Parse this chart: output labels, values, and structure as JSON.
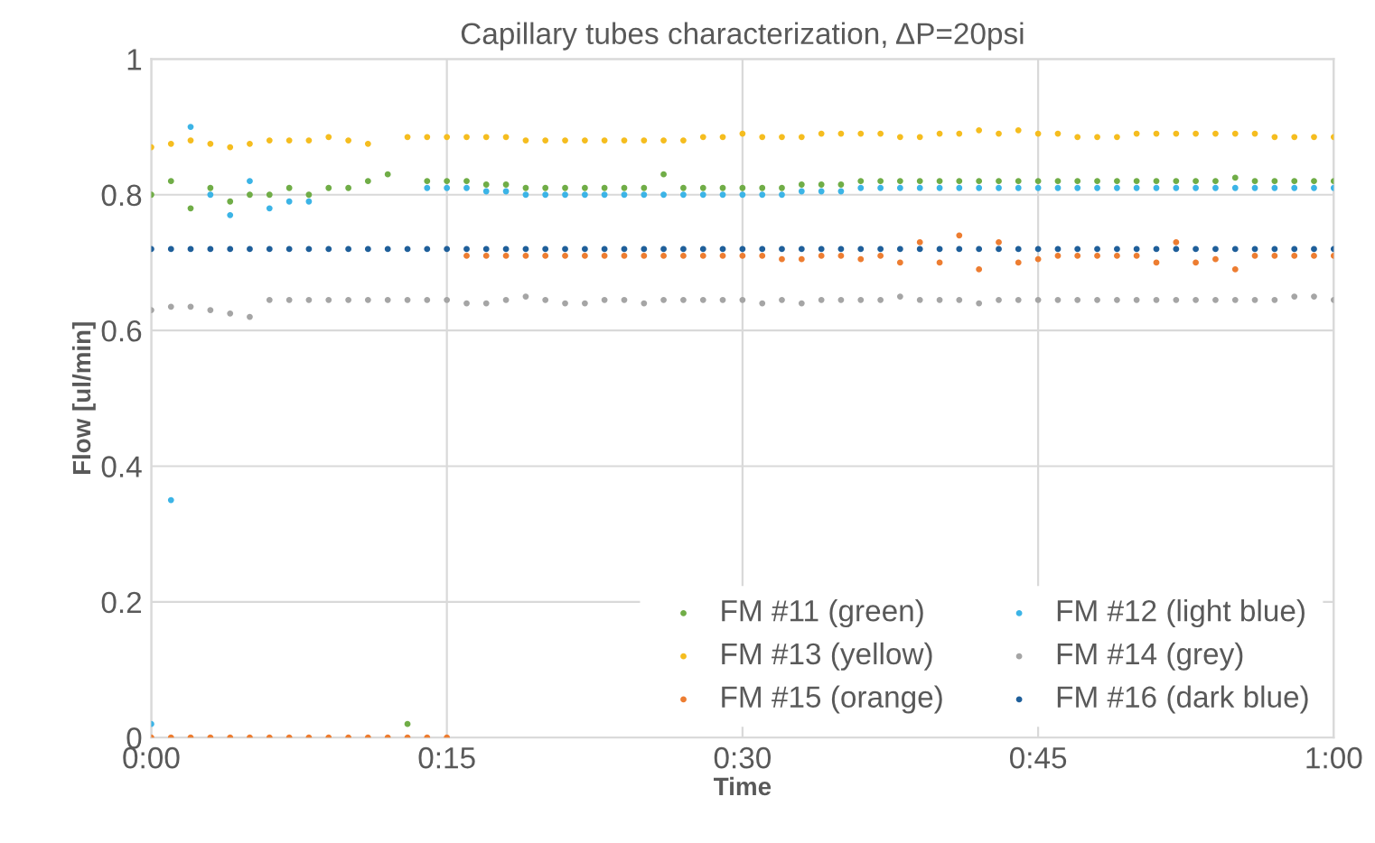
{
  "chart_data": {
    "type": "scatter",
    "title": "Capillary tubes characterization, ΔP=20psi",
    "xlabel": "Time",
    "ylabel": "Flow [ul/min]",
    "x": [
      0,
      0.0167,
      0.0333,
      0.05,
      0.0667,
      0.0833,
      0.1,
      0.1167,
      0.1333,
      0.15,
      0.1667,
      0.1833,
      0.2,
      0.2167,
      0.2333,
      0.25,
      0.2667,
      0.2833,
      0.3,
      0.3167,
      0.3333,
      0.35,
      0.3667,
      0.3833,
      0.4,
      0.4167,
      0.4333,
      0.45,
      0.4667,
      0.4833,
      0.5,
      0.5167,
      0.5333,
      0.55,
      0.5667,
      0.5833,
      0.6,
      0.6167,
      0.6333,
      0.65,
      0.6667,
      0.6833,
      0.7,
      0.7167,
      0.7333,
      0.75,
      0.7667,
      0.7833,
      0.8,
      0.8167,
      0.8333,
      0.85,
      0.8667,
      0.8833,
      0.9,
      0.9167,
      0.9333,
      0.95,
      0.9667,
      0.9833,
      1
    ],
    "xlim": [
      0,
      1
    ],
    "xticks": [
      {
        "value": 0,
        "label": "0:00"
      },
      {
        "value": 0.25,
        "label": "0:15"
      },
      {
        "value": 0.5,
        "label": "0:30"
      },
      {
        "value": 0.75,
        "label": "0:45"
      },
      {
        "value": 1,
        "label": "1:00"
      }
    ],
    "ylim": [
      0,
      1
    ],
    "yticks": [
      0,
      {
        "value": 0.2,
        "label": "0.2"
      },
      {
        "value": 0.4,
        "label": "0.4"
      },
      {
        "value": 0.6,
        "label": "0.6"
      },
      {
        "value": 0.8,
        "label": "0.8"
      },
      1
    ],
    "grid": true,
    "legend": "bottom right",
    "marker": "circle",
    "series": [
      {
        "name": "FM #11 (green)",
        "color": "#70ad47",
        "values": [
          0.8,
          0.82,
          0.78,
          0.81,
          0.79,
          0.8,
          0.8,
          0.81,
          0.8,
          0.81,
          0.81,
          0.82,
          0.83,
          0.02,
          0.82,
          0.82,
          0.82,
          0.815,
          0.815,
          0.81,
          0.81,
          0.81,
          0.81,
          0.81,
          0.81,
          0.81,
          0.83,
          0.81,
          0.81,
          0.81,
          0.81,
          0.81,
          0.81,
          0.815,
          0.815,
          0.815,
          0.82,
          0.82,
          0.82,
          0.82,
          0.82,
          0.82,
          0.82,
          0.82,
          0.82,
          0.82,
          0.82,
          0.82,
          0.82,
          0.82,
          0.82,
          0.82,
          0.82,
          0.82,
          0.82,
          0.825,
          0.82,
          0.82,
          0.82,
          0.82,
          0.82
        ]
      },
      {
        "name": "FM #12 (light blue)",
        "color": "#3cb4e6",
        "values": [
          0.02,
          0.35,
          0.9,
          0.8,
          0.77,
          0.82,
          0.78,
          0.79,
          0.79,
          null,
          null,
          null,
          null,
          null,
          0.81,
          0.81,
          0.81,
          0.805,
          0.805,
          0.8,
          0.8,
          0.8,
          0.8,
          0.8,
          0.8,
          0.8,
          0.8,
          0.8,
          0.8,
          0.8,
          0.8,
          0.8,
          0.8,
          0.805,
          0.805,
          0.805,
          0.81,
          0.81,
          0.81,
          0.81,
          0.81,
          0.81,
          0.81,
          0.81,
          0.81,
          0.81,
          0.81,
          0.81,
          0.81,
          0.81,
          0.81,
          0.81,
          0.81,
          0.81,
          0.81,
          0.81,
          0.81,
          0.81,
          0.81,
          0.81,
          0.81
        ]
      },
      {
        "name": "FM #13 (yellow)",
        "color": "#f5bd1f",
        "values": [
          0.87,
          0.875,
          0.88,
          0.875,
          0.87,
          0.875,
          0.88,
          0.88,
          0.88,
          0.885,
          0.88,
          0.875,
          null,
          0.885,
          0.885,
          0.885,
          0.885,
          0.885,
          0.885,
          0.88,
          0.88,
          0.88,
          0.88,
          0.88,
          0.88,
          0.88,
          0.88,
          0.88,
          0.885,
          0.885,
          0.89,
          0.885,
          0.885,
          0.885,
          0.89,
          0.89,
          0.89,
          0.89,
          0.885,
          0.885,
          0.89,
          0.89,
          0.895,
          0.89,
          0.895,
          0.89,
          0.89,
          0.885,
          0.885,
          0.885,
          0.89,
          0.89,
          0.89,
          0.89,
          0.89,
          0.89,
          0.89,
          0.885,
          0.885,
          0.885,
          0.885
        ]
      },
      {
        "name": "FM #14 (grey)",
        "color": "#a5a5a5",
        "values": [
          0.63,
          0.635,
          0.635,
          0.63,
          0.625,
          0.62,
          0.645,
          0.645,
          0.645,
          0.645,
          0.645,
          0.645,
          0.645,
          0.645,
          0.645,
          0.645,
          0.64,
          0.64,
          0.645,
          0.65,
          0.645,
          0.64,
          0.64,
          0.645,
          0.645,
          0.64,
          0.645,
          0.645,
          0.645,
          0.645,
          0.645,
          0.64,
          0.645,
          0.64,
          0.645,
          0.645,
          0.645,
          0.645,
          0.65,
          0.645,
          0.645,
          0.645,
          0.64,
          0.645,
          0.645,
          0.645,
          0.645,
          0.645,
          0.645,
          0.645,
          0.645,
          0.645,
          0.645,
          0.645,
          0.645,
          0.645,
          0.645,
          0.645,
          0.65,
          0.65,
          0.645
        ]
      },
      {
        "name": "FM #15 (orange)",
        "color": "#ed7d31",
        "values": [
          0,
          0,
          0,
          0,
          0,
          0,
          0,
          0,
          0,
          0,
          0,
          0,
          0,
          0,
          0,
          0,
          0.71,
          0.71,
          0.71,
          0.71,
          0.71,
          0.71,
          0.71,
          0.71,
          0.71,
          0.71,
          0.71,
          0.71,
          0.71,
          0.71,
          0.71,
          0.71,
          0.705,
          0.705,
          0.71,
          0.71,
          0.705,
          0.71,
          0.7,
          0.73,
          0.7,
          0.74,
          0.69,
          0.73,
          0.7,
          0.705,
          0.71,
          0.71,
          0.71,
          0.71,
          0.71,
          0.7,
          0.73,
          0.7,
          0.705,
          0.69,
          0.71,
          0.71,
          0.71,
          0.71,
          0.71
        ]
      },
      {
        "name": "FM #16 (dark blue)",
        "color": "#1f5f9a",
        "values": [
          0.72,
          0.72,
          0.72,
          0.72,
          0.72,
          0.72,
          0.72,
          0.72,
          0.72,
          0.72,
          0.72,
          0.72,
          0.72,
          0.72,
          0.72,
          0.72,
          0.72,
          0.72,
          0.72,
          0.72,
          0.72,
          0.72,
          0.72,
          0.72,
          0.72,
          0.72,
          0.72,
          0.72,
          0.72,
          0.72,
          0.72,
          0.72,
          0.72,
          0.72,
          0.72,
          0.72,
          0.72,
          0.72,
          0.72,
          0.72,
          0.72,
          0.72,
          0.72,
          0.72,
          0.72,
          0.72,
          0.72,
          0.72,
          0.72,
          0.72,
          0.72,
          0.72,
          0.72,
          0.72,
          0.72,
          0.72,
          0.72,
          0.72,
          0.72,
          0.72,
          0.72
        ]
      }
    ]
  }
}
